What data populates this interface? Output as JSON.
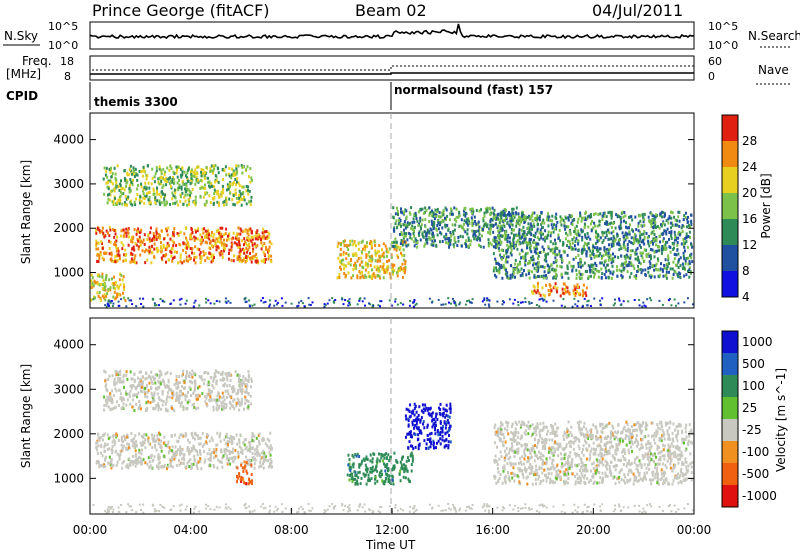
{
  "header": {
    "site": "Prince George (fitACF)",
    "beam": "Beam 02",
    "date": "04/Jul/2011"
  },
  "noise_panel": {
    "left_label": "N.Sky",
    "right_label": "N.Search",
    "left_ticks": [
      "10^5",
      "10^0"
    ],
    "right_ticks": [
      "10^5",
      "10^0"
    ]
  },
  "freq_panel": {
    "left_label_line1": "Freq.",
    "left_label_line2": "[MHz]",
    "left_ticks": [
      "18",
      "8"
    ],
    "right_label": "Nave",
    "right_ticks": [
      "60",
      "0"
    ]
  },
  "cpid_panel": {
    "label": "CPID",
    "mode1": "themis 3300",
    "mode2": "normalsound (fast) 157"
  },
  "chart_data": [
    {
      "type": "heatmap",
      "name": "power",
      "ylabel": "Slant Range [km]",
      "y_ticks": [
        "1000",
        "2000",
        "3000",
        "4000"
      ],
      "ylim": [
        200,
        4600
      ],
      "xlim_hours": [
        0,
        24
      ],
      "colorbar_label": "Power [dB]",
      "colorbar_ticks": [
        "4",
        "8",
        "12",
        "16",
        "20",
        "24",
        "28"
      ],
      "colorbar_colors": [
        "#1010e0",
        "#2050a0",
        "#2e8b57",
        "#7cc24a",
        "#e8d020",
        "#f08a10",
        "#e02010"
      ],
      "regions": [
        {
          "t0": 0.2,
          "t1": 7.2,
          "r0": 1250,
          "r1": 2050,
          "level": 5
        },
        {
          "t0": 0.5,
          "t1": 6.4,
          "r0": 2550,
          "r1": 3450,
          "level": 3
        },
        {
          "t0": 0.0,
          "t1": 1.4,
          "r0": 400,
          "r1": 1000,
          "level": 4
        },
        {
          "t0": 9.8,
          "t1": 12.5,
          "r0": 900,
          "r1": 1750,
          "level": 4
        },
        {
          "t0": 12.0,
          "t1": 17.5,
          "r0": 1600,
          "r1": 2500,
          "level": 2
        },
        {
          "t0": 16.0,
          "t1": 23.9,
          "r0": 900,
          "r1": 2400,
          "level": 2
        },
        {
          "t0": 17.5,
          "t1": 19.7,
          "r0": 500,
          "r1": 800,
          "level": 5
        }
      ]
    },
    {
      "type": "heatmap",
      "name": "velocity",
      "ylabel": "Slant Range [km]",
      "y_ticks": [
        "1000",
        "2000",
        "3000",
        "4000"
      ],
      "ylim": [
        200,
        4600
      ],
      "xlim_hours": [
        0,
        24
      ],
      "xlabel": "Time UT",
      "x_ticks": [
        "00:00",
        "04:00",
        "08:00",
        "12:00",
        "16:00",
        "20:00",
        "00:00"
      ],
      "colorbar_label": "Velocity [m s^-1]",
      "colorbar_ticks": [
        "1000",
        "500",
        "100",
        "25",
        "-25",
        "-100",
        "-500",
        "-1000"
      ],
      "colorbar_colors": [
        "#1010d0",
        "#2060c0",
        "#2e8b57",
        "#60c030",
        "#c8c8c0",
        "#f09020",
        "#f06010",
        "#e01010"
      ],
      "regions": [
        {
          "t0": 0.2,
          "t1": 7.2,
          "r0": 1250,
          "r1": 2050,
          "level": "grey"
        },
        {
          "t0": 0.5,
          "t1": 6.4,
          "r0": 2550,
          "r1": 3450,
          "level": "grey"
        },
        {
          "t0": 10.2,
          "t1": 12.8,
          "r0": 900,
          "r1": 1600,
          "level": "green"
        },
        {
          "t0": 12.5,
          "t1": 14.3,
          "r0": 1700,
          "r1": 2700,
          "level": "blue"
        },
        {
          "t0": 16.0,
          "t1": 23.9,
          "r0": 900,
          "r1": 2300,
          "level": "grey"
        },
        {
          "t0": 5.8,
          "t1": 6.4,
          "r0": 900,
          "r1": 1400,
          "level": "orange"
        }
      ]
    }
  ]
}
